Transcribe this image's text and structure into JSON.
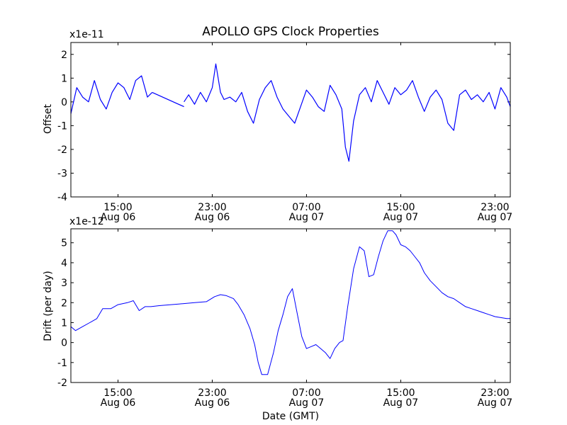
{
  "chart_data": [
    {
      "type": "line",
      "title": "APOLLO GPS Clock Properties",
      "scale_label": "x1e-11",
      "ylabel": "Offset",
      "xlabel": "",
      "ylim": [
        -4,
        2.5
      ],
      "yticks": [
        -4,
        -3,
        -2,
        -1,
        0,
        1,
        2
      ],
      "ytick_labels": [
        "-4",
        "-3",
        "-2",
        "-1",
        "0",
        "1",
        "2"
      ],
      "xlim_hours": [
        11.0,
        48.3
      ],
      "xticks": [
        {
          "hour": 15,
          "time": "15:00",
          "date": "Aug 06"
        },
        {
          "hour": 23,
          "time": "23:00",
          "date": "Aug 06"
        },
        {
          "hour": 31,
          "time": "07:00",
          "date": "Aug 07"
        },
        {
          "hour": 39,
          "time": "15:00",
          "date": "Aug 07"
        },
        {
          "hour": 47,
          "time": "23:00",
          "date": "Aug 07"
        }
      ],
      "color": "#0000ff",
      "grid": false,
      "segments": [
        {
          "x": [
            11.0,
            11.5,
            12.0,
            12.5,
            13.0,
            13.5,
            14.0,
            14.5,
            15.0,
            15.5,
            16.0,
            16.5,
            17.0,
            17.5,
            17.9
          ],
          "y": [
            -0.5,
            0.6,
            0.2,
            0.0,
            0.9,
            0.1,
            -0.3,
            0.4,
            0.8,
            0.6,
            0.1,
            0.9,
            1.1,
            0.2,
            0.4
          ]
        },
        {
          "x": [
            17.9,
            20.6
          ],
          "y": [
            0.4,
            -0.2
          ]
        },
        {
          "x": [
            20.6,
            21.0,
            21.5,
            22.0,
            22.5,
            23.0,
            23.3,
            23.7,
            24.0,
            24.5,
            25.0,
            25.5,
            26.0,
            26.5,
            27.0,
            27.5,
            28.0,
            28.5,
            29.0,
            29.5,
            30.0,
            30.5,
            31.0,
            31.5,
            32.0,
            32.5,
            33.0,
            33.5,
            34.0,
            34.3,
            34.6,
            35.0,
            35.5,
            36.0,
            36.5,
            37.0,
            37.5,
            38.0,
            38.5,
            39.0,
            39.5,
            40.0,
            40.5,
            41.0,
            41.5,
            42.0,
            42.5,
            43.0,
            43.5,
            44.0,
            44.5,
            45.0,
            45.5,
            46.0,
            46.5,
            47.0,
            47.5,
            48.0,
            48.3
          ],
          "y": [
            0.0,
            0.3,
            -0.1,
            0.4,
            0.0,
            0.6,
            1.6,
            0.4,
            0.1,
            0.2,
            0.0,
            0.4,
            -0.4,
            -0.9,
            0.1,
            0.6,
            0.9,
            0.2,
            -0.3,
            -0.6,
            -0.9,
            -0.2,
            0.5,
            0.2,
            -0.2,
            -0.4,
            0.7,
            0.3,
            -0.3,
            -1.9,
            -2.5,
            -0.8,
            0.3,
            0.6,
            0.0,
            0.9,
            0.4,
            -0.1,
            0.6,
            0.3,
            0.5,
            0.9,
            0.2,
            -0.4,
            0.2,
            0.5,
            0.1,
            -0.9,
            -1.2,
            0.3,
            0.5,
            0.1,
            0.3,
            0.0,
            0.4,
            -0.3,
            0.6,
            0.2,
            -0.2
          ]
        }
      ]
    },
    {
      "type": "line",
      "title": "",
      "scale_label": "x1e-12",
      "ylabel": "Drift (per day)",
      "xlabel": "Date (GMT)",
      "ylim": [
        -2,
        5.7
      ],
      "yticks": [
        -2,
        -1,
        0,
        1,
        2,
        3,
        4,
        5
      ],
      "ytick_labels": [
        "-2",
        "-1",
        "0",
        "1",
        "2",
        "3",
        "4",
        "5"
      ],
      "xlim_hours": [
        11.0,
        48.3
      ],
      "xticks": [
        {
          "hour": 15,
          "time": "15:00",
          "date": "Aug 06"
        },
        {
          "hour": 23,
          "time": "23:00",
          "date": "Aug 06"
        },
        {
          "hour": 31,
          "time": "07:00",
          "date": "Aug 07"
        },
        {
          "hour": 39,
          "time": "15:00",
          "date": "Aug 07"
        },
        {
          "hour": 47,
          "time": "23:00",
          "date": "Aug 07"
        }
      ],
      "color": "#0000ff",
      "grid": false,
      "segments": [
        {
          "x": [
            11.0,
            11.4,
            12.0,
            12.6,
            13.2,
            13.7,
            14.4,
            15.0,
            15.8,
            16.3,
            16.8,
            17.3,
            17.8,
            18.5,
            19.5,
            20.5,
            21.5,
            22.5,
            23.2,
            23.7,
            24.2,
            24.8,
            25.2,
            25.7,
            26.2,
            26.6,
            26.9,
            27.2,
            27.7,
            28.2,
            28.6,
            29.0,
            29.4,
            29.8,
            30.2,
            30.6,
            31.0,
            31.4,
            31.8,
            32.2,
            32.6,
            33.0,
            33.4,
            33.8,
            34.1,
            34.5,
            35.0,
            35.5,
            35.9,
            36.3,
            36.7,
            37.1,
            37.5,
            37.9,
            38.3,
            38.6,
            39.0,
            39.4,
            39.8,
            40.2,
            40.6,
            41.0,
            41.5,
            42.0,
            42.5,
            43.0,
            43.5,
            44.0,
            44.5,
            45.0,
            45.5,
            46.0,
            46.5,
            47.0,
            47.5,
            48.0,
            48.3
          ],
          "y": [
            0.8,
            0.6,
            0.8,
            1.0,
            1.2,
            1.7,
            1.7,
            1.9,
            2.0,
            2.1,
            1.6,
            1.8,
            1.8,
            1.85,
            1.9,
            1.95,
            2.0,
            2.05,
            2.3,
            2.4,
            2.35,
            2.2,
            1.9,
            1.4,
            0.7,
            -0.1,
            -1.0,
            -1.6,
            -1.6,
            -0.5,
            0.6,
            1.4,
            2.3,
            2.7,
            1.5,
            0.3,
            -0.3,
            -0.2,
            -0.1,
            -0.3,
            -0.5,
            -0.8,
            -0.3,
            0.0,
            0.1,
            1.8,
            3.7,
            4.8,
            4.6,
            3.3,
            3.4,
            4.3,
            5.1,
            5.6,
            5.6,
            5.4,
            4.9,
            4.8,
            4.6,
            4.3,
            4.0,
            3.5,
            3.1,
            2.8,
            2.5,
            2.3,
            2.2,
            2.0,
            1.8,
            1.7,
            1.6,
            1.5,
            1.4,
            1.3,
            1.25,
            1.2,
            1.2
          ]
        }
      ]
    }
  ]
}
